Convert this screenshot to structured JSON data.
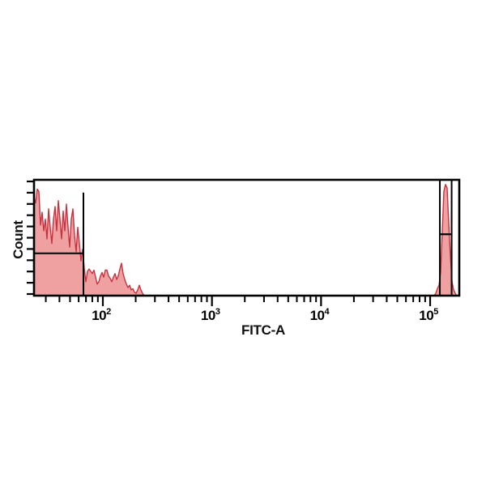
{
  "chart_data": {
    "type": "area",
    "subtype": "flow-cytometry-histogram",
    "title": "",
    "xlabel": "FITC-A",
    "ylabel": "Count",
    "x_scale": "log10",
    "x_axis_range_log10": [
      1.369,
      5.267
    ],
    "grid": false,
    "legend": false,
    "x_major_ticks": [
      {
        "value": 100,
        "mantissa": "10",
        "exponent": "2"
      },
      {
        "value": 1000,
        "mantissa": "10",
        "exponent": "3"
      },
      {
        "value": 10000,
        "mantissa": "10",
        "exponent": "4"
      },
      {
        "value": 100000,
        "mantissa": "10",
        "exponent": "5"
      }
    ],
    "x_minor_tick_mantissas": [
      2,
      3,
      4,
      5,
      6,
      7,
      8,
      9
    ],
    "y_axis": {
      "label": "Count",
      "numeric_labels": false,
      "tick_count": 11
    },
    "series": [
      {
        "name": "negative-population",
        "log10_start": 1.369,
        "log10_step": 0.014849,
        "heights_rel": [
          0.85,
          0.8,
          0.92,
          0.9,
          0.61,
          0.72,
          0.56,
          0.66,
          0.49,
          0.75,
          0.59,
          0.45,
          0.66,
          0.77,
          0.56,
          0.82,
          0.66,
          0.49,
          0.73,
          0.56,
          0.79,
          0.59,
          0.42,
          0.66,
          0.75,
          0.52,
          0.38,
          0.59,
          0.45,
          0.3,
          0.4,
          0.24,
          0.12,
          0.21,
          0.23,
          0.21,
          0.19,
          0.22,
          0.16,
          0.1,
          0.12,
          0.17,
          0.2,
          0.16,
          0.22,
          0.22,
          0.17,
          0.15,
          0.12,
          0.16,
          0.19,
          0.14,
          0.17,
          0.23,
          0.28,
          0.19,
          0.14,
          0.1,
          0.07,
          0.09,
          0.05,
          0.06,
          0.03,
          0.02,
          0.05,
          0.09,
          0.05,
          0.02,
          0.0
        ]
      },
      {
        "name": "positive-population",
        "log10_start": 5.0368,
        "log10_step": 0.014849,
        "heights_rel": [
          0.0,
          0.02,
          0.06,
          0.09,
          0.2,
          0.55,
          0.9,
          0.96,
          0.93,
          0.62,
          0.35,
          0.12,
          0.05,
          0.02,
          0.0
        ]
      }
    ],
    "gates": {
      "left_gate": {
        "vline_log10": 1.822,
        "vline_top_rel": 0.89,
        "hline_rel": 0.365,
        "hline_log10_from": 1.369,
        "hline_log10_to": 1.822
      },
      "right_gate": {
        "vline_left_log10": 5.089,
        "vline_right_log10": 5.197,
        "vline_top_rel": 1.0,
        "hline_rel": 0.53
      }
    },
    "colors": {
      "histogram_fill": "#efa0a0",
      "histogram_stroke": "#c83240",
      "axis": "#000000",
      "gate": "#000000",
      "background": "#ffffff"
    }
  }
}
